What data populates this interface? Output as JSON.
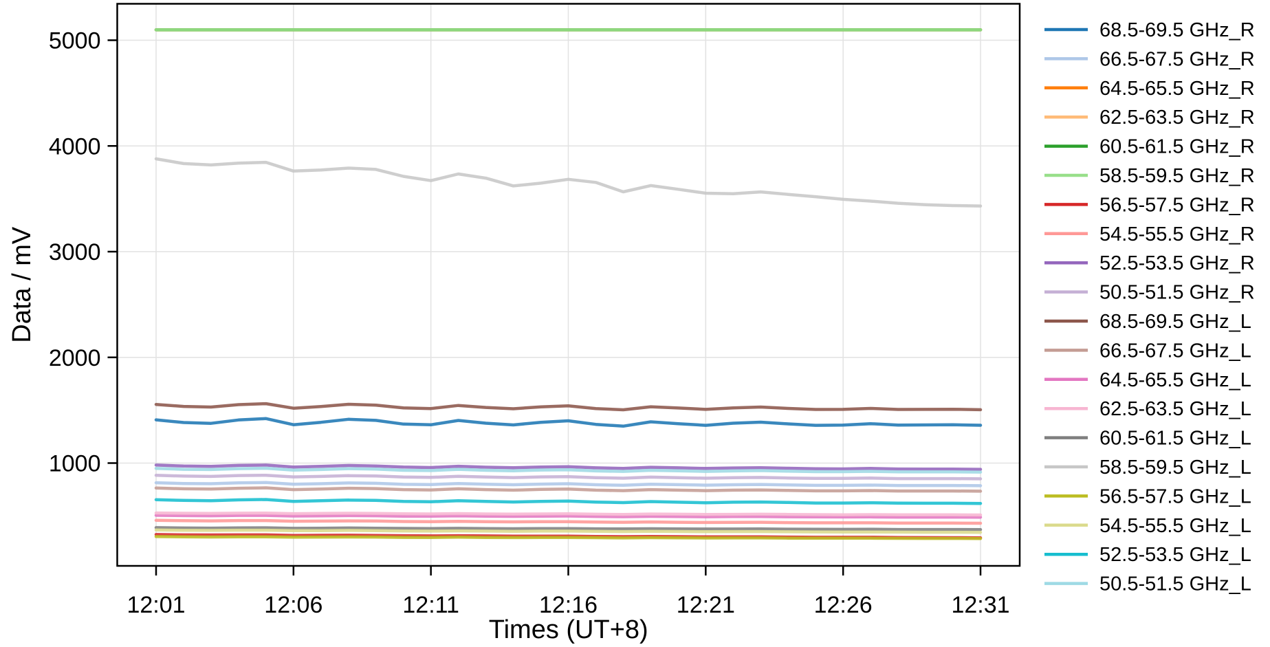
{
  "figure": {
    "background": "#ffffff",
    "axis_color": "#000000",
    "grid_color": "#e2e2e2"
  },
  "chart_data": {
    "type": "line",
    "title": "",
    "xlabel": "Times (UT+8)",
    "ylabel": "Data / mV",
    "grid": true,
    "legend_position": "right-outside",
    "y_ticks": [
      1000,
      2000,
      3000,
      4000,
      5000
    ],
    "ylim": [
      30,
      5345
    ],
    "x_tick_labels": [
      "12:01",
      "12:06",
      "12:11",
      "12:16",
      "12:21",
      "12:26",
      "12:31"
    ],
    "x_tick_indices": [
      0,
      5,
      10,
      15,
      20,
      25,
      30
    ],
    "x_times": [
      "12:01",
      "12:02",
      "12:03",
      "12:04",
      "12:05",
      "12:06",
      "12:07",
      "12:08",
      "12:09",
      "12:10",
      "12:11",
      "12:12",
      "12:13",
      "12:14",
      "12:15",
      "12:16",
      "12:17",
      "12:18",
      "12:19",
      "12:20",
      "12:21",
      "12:22",
      "12:23",
      "12:24",
      "12:25",
      "12:26",
      "12:27",
      "12:28",
      "12:29",
      "12:30",
      "12:31"
    ],
    "series": [
      {
        "label": "68.5-69.5 GHz_R",
        "color": "#1f77b4",
        "values": [
          1409,
          1384,
          1376,
          1408,
          1421,
          1363,
          1386,
          1414,
          1404,
          1369,
          1362,
          1403,
          1377,
          1361,
          1386,
          1400,
          1366,
          1349,
          1390,
          1373,
          1357,
          1377,
          1387,
          1371,
          1357,
          1359,
          1373,
          1359,
          1361,
          1362,
          1358
        ]
      },
      {
        "label": "66.5-67.5 GHz_R",
        "color": "#aec7e8",
        "values": [
          814,
          807,
          805,
          813,
          816,
          800,
          805,
          812,
          809,
          799,
          797,
          807,
          800,
          795,
          801,
          805,
          795,
          790,
          800,
          796,
          791,
          795,
          798,
          793,
          789,
          789,
          792,
          788,
          788,
          788,
          786
        ]
      },
      {
        "label": "64.5-65.5 GHz_R",
        "color": "#ff7f0e",
        "values": [
          5098,
          5098,
          5098,
          5098,
          5098,
          5098,
          5098,
          5098,
          5098,
          5098,
          5098,
          5098,
          5098,
          5098,
          5098,
          5098,
          5098,
          5098,
          5098,
          5098,
          5098,
          5098,
          5098,
          5098,
          5098,
          5098,
          5098,
          5098,
          5098,
          5098,
          5098
        ]
      },
      {
        "label": "62.5-63.5 GHz_R",
        "color": "#ffbb78",
        "values": [
          5098,
          5098,
          5098,
          5098,
          5098,
          5098,
          5098,
          5098,
          5098,
          5098,
          5098,
          5098,
          5098,
          5098,
          5098,
          5098,
          5098,
          5098,
          5098,
          5098,
          5098,
          5098,
          5098,
          5098,
          5098,
          5098,
          5098,
          5098,
          5098,
          5098,
          5098
        ]
      },
      {
        "label": "60.5-61.5 GHz_R",
        "color": "#2ca02c",
        "values": [
          5098,
          5098,
          5098,
          5098,
          5098,
          5098,
          5098,
          5098,
          5098,
          5098,
          5098,
          5098,
          5098,
          5098,
          5098,
          5098,
          5098,
          5098,
          5098,
          5098,
          5098,
          5098,
          5098,
          5098,
          5098,
          5098,
          5098,
          5098,
          5098,
          5098,
          5098
        ]
      },
      {
        "label": "58.5-59.5 GHz_R",
        "color": "#98df8a",
        "values": [
          5098,
          5098,
          5098,
          5098,
          5098,
          5098,
          5098,
          5098,
          5098,
          5098,
          5098,
          5098,
          5098,
          5098,
          5098,
          5098,
          5098,
          5098,
          5098,
          5098,
          5098,
          5098,
          5098,
          5098,
          5098,
          5098,
          5098,
          5098,
          5098,
          5098,
          5098
        ]
      },
      {
        "label": "56.5-57.5 GHz_R",
        "color": "#d62728",
        "values": [
          324,
          321,
          320,
          321,
          321,
          316,
          317,
          318,
          316,
          313,
          311,
          313,
          311,
          309,
          309,
          309,
          306,
          304,
          306,
          304,
          302,
          302,
          302,
          300,
          298,
          298,
          298,
          296,
          295,
          294,
          293
        ]
      },
      {
        "label": "54.5-55.5 GHz_R",
        "color": "#ff9896",
        "values": [
          458,
          455,
          453,
          456,
          456,
          450,
          451,
          453,
          452,
          447,
          446,
          449,
          446,
          444,
          445,
          446,
          442,
          440,
          443,
          440,
          438,
          439,
          440,
          437,
          435,
          435,
          435,
          433,
          433,
          432,
          431
        ]
      },
      {
        "label": "52.5-53.5 GHz_R",
        "color": "#9467bd",
        "values": [
          981,
          972,
          969,
          978,
          981,
          963,
          969,
          977,
          973,
          962,
          958,
          970,
          961,
          956,
          963,
          966,
          955,
          949,
          960,
          955,
          949,
          954,
          956,
          951,
          946,
          945,
          949,
          944,
          943,
          943,
          941
        ]
      },
      {
        "label": "50.5-51.5 GHz_R",
        "color": "#c5b0d5",
        "values": [
          884,
          877,
          874,
          882,
          885,
          869,
          874,
          881,
          878,
          868,
          865,
          875,
          868,
          863,
          869,
          872,
          862,
          857,
          867,
          862,
          857,
          862,
          864,
          859,
          855,
          855,
          858,
          853,
          853,
          853,
          851
        ]
      },
      {
        "label": "68.5-69.5 GHz_L",
        "color": "#8c564b",
        "values": [
          1555,
          1536,
          1530,
          1553,
          1562,
          1519,
          1535,
          1556,
          1548,
          1522,
          1516,
          1545,
          1526,
          1514,
          1532,
          1542,
          1516,
          1504,
          1533,
          1521,
          1508,
          1522,
          1530,
          1517,
          1507,
          1508,
          1517,
          1507,
          1508,
          1509,
          1505
        ]
      },
      {
        "label": "66.5-67.5 GHz_L",
        "color": "#c49c94",
        "values": [
          764,
          757,
          755,
          762,
          766,
          749,
          755,
          762,
          759,
          749,
          746,
          757,
          749,
          744,
          751,
          754,
          744,
          739,
          749,
          744,
          739,
          744,
          746,
          741,
          737,
          737,
          740,
          736,
          736,
          736,
          734
        ]
      },
      {
        "label": "64.5-65.5 GHz_L",
        "color": "#e377c2",
        "values": [
          506,
          503,
          502,
          505,
          505,
          499,
          501,
          503,
          502,
          498,
          497,
          501,
          498,
          496,
          498,
          499,
          495,
          493,
          496,
          494,
          492,
          494,
          494,
          492,
          491,
          490,
          491,
          489,
          489,
          489,
          488
        ]
      },
      {
        "label": "62.5-63.5 GHz_L",
        "color": "#f7b6d2",
        "values": [
          528,
          525,
          524,
          526,
          527,
          521,
          523,
          525,
          524,
          520,
          519,
          522,
          519,
          517,
          519,
          520,
          516,
          514,
          518,
          516,
          514,
          515,
          516,
          514,
          512,
          511,
          512,
          511,
          510,
          510,
          509
        ]
      },
      {
        "label": "60.5-61.5 GHz_L",
        "color": "#7f7f7f",
        "values": [
          389,
          386,
          385,
          387,
          388,
          383,
          384,
          386,
          384,
          382,
          381,
          383,
          381,
          379,
          380,
          381,
          378,
          377,
          379,
          377,
          376,
          376,
          377,
          375,
          374,
          373,
          374,
          372,
          372,
          372,
          371
        ]
      },
      {
        "label": "58.5-59.5 GHz_L",
        "color": "#c7c7c7",
        "values": [
          3878,
          3833,
          3820,
          3838,
          3845,
          3762,
          3772,
          3790,
          3778,
          3712,
          3672,
          3735,
          3695,
          3622,
          3648,
          3684,
          3655,
          3566,
          3625,
          3590,
          3553,
          3548,
          3565,
          3542,
          3520,
          3495,
          3478,
          3458,
          3444,
          3436,
          3432
        ]
      },
      {
        "label": "56.5-57.5 GHz_L",
        "color": "#bcbd22",
        "values": [
          305,
          302,
          301,
          303,
          303,
          299,
          300,
          301,
          300,
          297,
          296,
          299,
          296,
          295,
          296,
          296,
          294,
          292,
          294,
          293,
          291,
          292,
          292,
          290,
          289,
          289,
          289,
          288,
          287,
          287,
          286
        ]
      },
      {
        "label": "54.5-55.5 GHz_L",
        "color": "#dbdb8d",
        "values": [
          367,
          364,
          363,
          365,
          365,
          361,
          361,
          363,
          361,
          358,
          357,
          359,
          357,
          355,
          357,
          357,
          354,
          352,
          354,
          353,
          351,
          352,
          352,
          350,
          349,
          348,
          348,
          347,
          346,
          346,
          345
        ]
      },
      {
        "label": "52.5-53.5 GHz_L",
        "color": "#17becf",
        "values": [
          654,
          647,
          644,
          652,
          655,
          638,
          644,
          650,
          647,
          637,
          634,
          644,
          637,
          632,
          638,
          641,
          631,
          626,
          636,
          630,
          625,
          630,
          632,
          627,
          622,
          622,
          625,
          621,
          620,
          620,
          618
        ]
      },
      {
        "label": "50.5-51.5 GHz_L",
        "color": "#9edae5",
        "values": [
          950,
          941,
          939,
          947,
          951,
          933,
          939,
          947,
          943,
          932,
          929,
          941,
          932,
          927,
          934,
          937,
          926,
          921,
          932,
          927,
          921,
          926,
          929,
          923,
          919,
          919,
          922,
          917,
          917,
          917,
          915
        ]
      }
    ]
  }
}
